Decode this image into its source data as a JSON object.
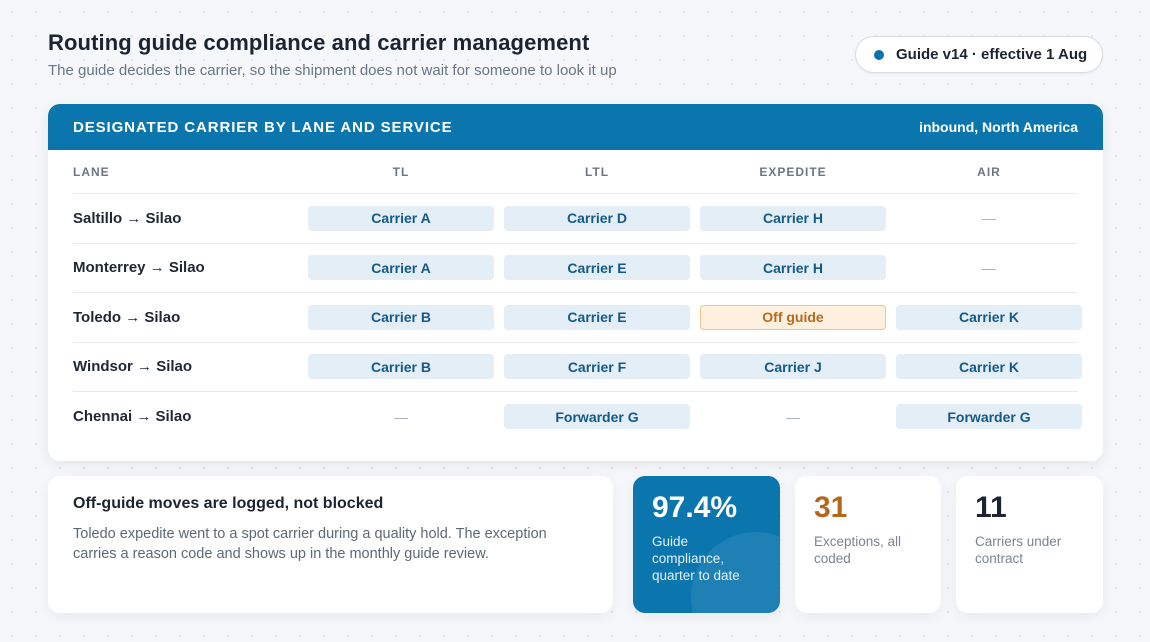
{
  "header": {
    "title": "Routing guide compliance and carrier management",
    "subtitle": "The guide decides the carrier, so the shipment does not wait for someone to look it up",
    "version_badge": "Guide v14 · effective 1 Aug"
  },
  "table": {
    "title": "DESIGNATED CARRIER BY LANE AND SERVICE",
    "scope": "inbound, North America",
    "columns": [
      "LANE",
      "TL",
      "LTL",
      "EXPEDITE",
      "AIR"
    ],
    "rows": [
      {
        "lane": "Saltillo → Silao",
        "cells": [
          "Carrier A",
          "Carrier D",
          "Carrier H",
          "—"
        ]
      },
      {
        "lane": "Monterrey → Silao",
        "cells": [
          "Carrier A",
          "Carrier E",
          "Carrier H",
          "—"
        ]
      },
      {
        "lane": "Toledo → Silao",
        "cells": [
          "Carrier B",
          "Carrier E",
          "Off guide",
          "Carrier K"
        ]
      },
      {
        "lane": "Windsor → Silao",
        "cells": [
          "Carrier B",
          "Carrier F",
          "Carrier J",
          "Carrier K"
        ]
      },
      {
        "lane": "Chennai → Silao",
        "cells": [
          "—",
          "Forwarder G",
          "—",
          "Forwarder G"
        ]
      }
    ]
  },
  "note": {
    "title": "Off-guide moves are logged, not blocked",
    "body": "Toledo expedite went to a spot carrier during a quality hold. The exception carries a reason code and shows up in the monthly guide review."
  },
  "stats": [
    {
      "value": "97.4%",
      "label": "Guide compliance, quarter to date"
    },
    {
      "value": "31",
      "label": "Exceptions, all coded"
    },
    {
      "value": "11",
      "label": "Carriers under contract"
    }
  ],
  "colors": {
    "accent": "#0b76ae",
    "chip_bg": "#e3eef7",
    "off_guide_bg": "#fdf0df",
    "off_guide_text": "#b8691f",
    "exceptions": "#b5681c"
  }
}
